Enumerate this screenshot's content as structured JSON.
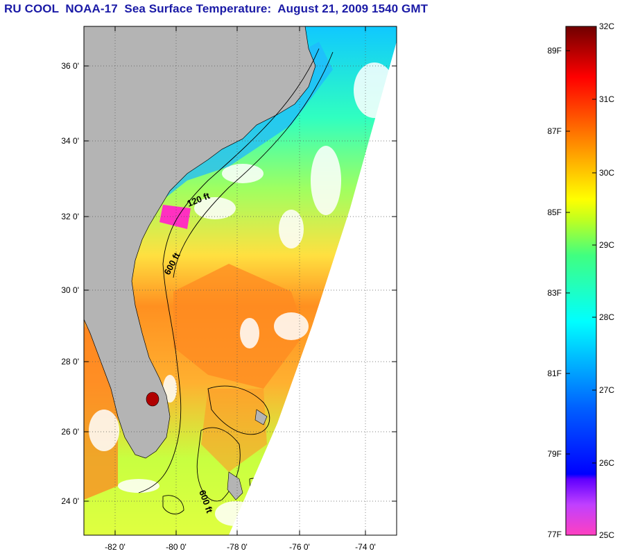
{
  "title": "RU COOL  NOAA-17  Sea Surface Temperature:  August 21, 2009 1540 GMT",
  "map": {
    "lat_ticks": [
      "36 0'",
      "34 0'",
      "32 0'",
      "30 0'",
      "28 0'",
      "26 0'",
      "24 0'"
    ],
    "lon_ticks": [
      "-82 0'",
      "-80 0'",
      "-78 0'",
      "-76 0'",
      "-74 0'"
    ],
    "contour_labels": [
      "120 ft",
      "600 ft",
      "600 ft"
    ],
    "colors": {
      "land": "#b4b4b4",
      "cloud": "#ffffff",
      "frame": "#000000"
    }
  },
  "colorbar": {
    "fahrenheit_labels": [
      "89F",
      "87F",
      "85F",
      "83F",
      "81F",
      "79F",
      "77F"
    ],
    "celsius_labels": [
      "32C",
      "31C",
      "30C",
      "29C",
      "28C",
      "27C",
      "26C",
      "25C"
    ],
    "range_c": [
      25,
      32
    ],
    "colors": [
      "#ff40c0",
      "#a040ff",
      "#0000ff",
      "#0070ff",
      "#00e0ff",
      "#40ff80",
      "#c0ff20",
      "#ffff00",
      "#ffa000",
      "#ff4000",
      "#ff0000",
      "#a00000",
      "#800000"
    ]
  }
}
